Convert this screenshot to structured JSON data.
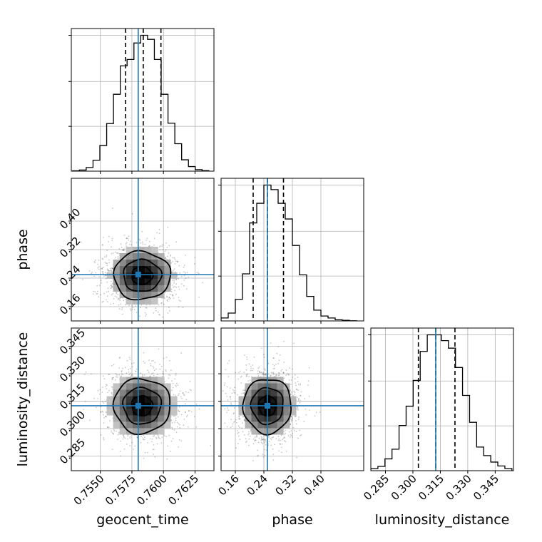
{
  "chart_data": {
    "type": "corner",
    "parameters": [
      "geocent_time",
      "phase",
      "luminosity_distance"
    ],
    "truths": {
      "geocent_time": 0.758,
      "phase": 0.25,
      "luminosity_distance": 0.3125
    },
    "colors": {
      "truth": "#1f77b4",
      "hist": "#000000",
      "quantile": "#000000",
      "grid": "#b0b0b0"
    },
    "axes": {
      "geocent_time": {
        "range": [
          0.7527,
          0.764
        ],
        "ticks": [
          0.755,
          0.7575,
          0.76,
          0.7625
        ],
        "tick_labels": [
          "0.7550",
          "0.7575",
          "0.7600",
          "0.7625"
        ]
      },
      "phase": {
        "range": [
          0.12,
          0.52
        ],
        "ticks": [
          0.16,
          0.24,
          0.32,
          0.4
        ],
        "tick_labels": [
          "0.16",
          "0.24",
          "0.32",
          "0.40"
        ]
      },
      "luminosity_distance": {
        "range": [
          0.277,
          0.355
        ],
        "ticks": [
          0.285,
          0.3,
          0.315,
          0.33,
          0.345
        ],
        "tick_labels": [
          "0.285",
          "0.300",
          "0.315",
          "0.330",
          "0.345"
        ]
      }
    },
    "diagonal": [
      {
        "param": "geocent_time",
        "bin_edges": [
          0.7528,
          0.75334,
          0.75388,
          0.75442,
          0.75496,
          0.7555,
          0.75604,
          0.75658,
          0.75712,
          0.75766,
          0.7582,
          0.75874,
          0.75928,
          0.75982,
          0.76036,
          0.7609,
          0.76144,
          0.76198,
          0.76252,
          0.76306,
          0.7636
        ],
        "counts": [
          2,
          6,
          20,
          60,
          140,
          260,
          420,
          575,
          610,
          700,
          742,
          720,
          610,
          420,
          262,
          150,
          62,
          25,
          8,
          3
        ],
        "quantiles": [
          0.757,
          0.7584,
          0.7598
        ]
      },
      {
        "param": "phase",
        "bin_edges": [
          0.12,
          0.14,
          0.16,
          0.18,
          0.2,
          0.22,
          0.24,
          0.26,
          0.28,
          0.3,
          0.32,
          0.34,
          0.36,
          0.38,
          0.4,
          0.42,
          0.44,
          0.46,
          0.48,
          0.5
        ],
        "counts": [
          15,
          40,
          110,
          240,
          500,
          600,
          693,
          670,
          600,
          520,
          385,
          235,
          125,
          55,
          25,
          15,
          6,
          3,
          1
        ],
        "quantiles": [
          0.21,
          0.25,
          0.295
        ]
      },
      {
        "param": "luminosity_distance",
        "bin_edges": [
          0.277,
          0.28086,
          0.28471,
          0.28857,
          0.29243,
          0.29629,
          0.30014,
          0.304,
          0.30786,
          0.31171,
          0.31557,
          0.31943,
          0.32329,
          0.32714,
          0.331,
          0.33486,
          0.33871,
          0.34257,
          0.34643,
          0.35029,
          0.35414
        ],
        "counts": [
          10,
          20,
          55,
          100,
          210,
          300,
          420,
          555,
          632,
          632,
          605,
          570,
          480,
          350,
          225,
          110,
          70,
          40,
          22,
          10
        ],
        "quantiles": [
          0.303,
          0.3125,
          0.323
        ]
      }
    ],
    "pairs": [
      {
        "x": "geocent_time",
        "y": "phase",
        "center": [
          0.7583,
          0.247
        ],
        "sd": [
          0.0015,
          0.045
        ]
      },
      {
        "x": "geocent_time",
        "y": "luminosity_distance",
        "center": [
          0.7583,
          0.3125
        ],
        "sd": [
          0.0015,
          0.01
        ]
      },
      {
        "x": "phase",
        "y": "luminosity_distance",
        "center": [
          0.25,
          0.3125
        ],
        "sd": [
          0.045,
          0.01
        ]
      }
    ]
  }
}
